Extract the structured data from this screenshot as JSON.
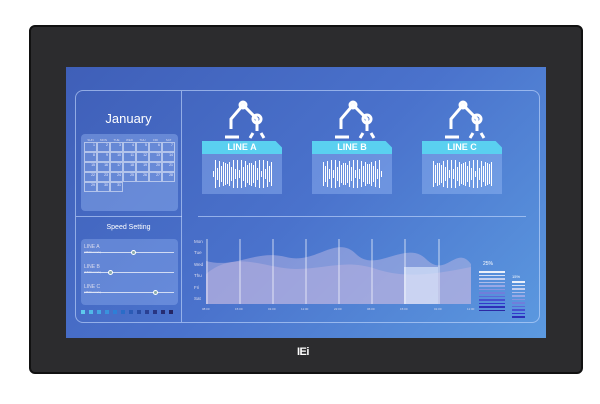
{
  "brand": "IEi",
  "calendar": {
    "month": "January",
    "weekdays": [
      "SUN",
      "MON",
      "TUE",
      "WED",
      "THU",
      "FRI",
      "SAT"
    ],
    "days": [
      1,
      2,
      3,
      4,
      5,
      6,
      7,
      8,
      9,
      10,
      11,
      12,
      13,
      14,
      15,
      16,
      17,
      18,
      19,
      20,
      21,
      22,
      23,
      24,
      25,
      26,
      27,
      28,
      29,
      30,
      31
    ]
  },
  "speed": {
    "title": "Speed Setting",
    "lines": [
      {
        "name": "LINE A",
        "value": "(3600 mm/s)",
        "level": 0.55
      },
      {
        "name": "LINE B",
        "value": "(1500 mm/s)",
        "level": 0.3
      },
      {
        "name": "LINE C",
        "value": "(4500 mm/s)",
        "level": 0.8
      }
    ]
  },
  "lines": [
    {
      "label": "LINE A"
    },
    {
      "label": "LINE B"
    },
    {
      "label": "LINE C"
    }
  ],
  "chart": {
    "days": [
      "Mon",
      "Tue",
      "Wed",
      "Thu",
      "Fri",
      "Sat"
    ],
    "times": [
      "08:00",
      "15:00",
      "01:00",
      "11:00",
      "22:00",
      "06:00",
      "15:00",
      "01:00",
      "11:00"
    ]
  },
  "gauges": [
    {
      "label": "25%"
    },
    {
      "label": "15%"
    }
  ],
  "colors": {
    "accent": "#5ad0f0",
    "bezel": "#2c2c2e"
  }
}
